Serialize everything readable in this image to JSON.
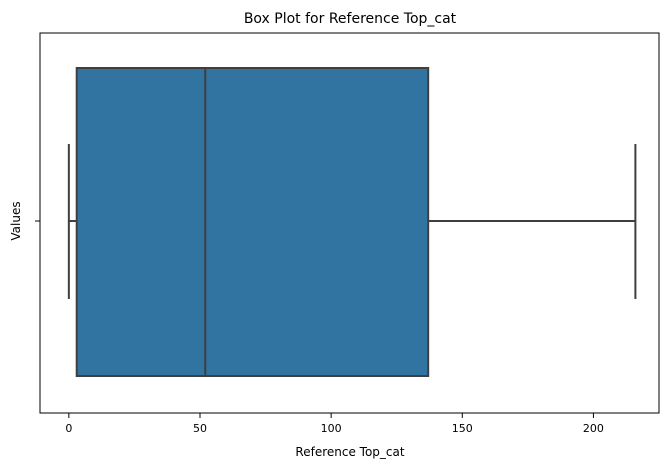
{
  "chart_data": {
    "type": "box",
    "title": "Box Plot for Reference Top_cat",
    "xlabel": "Reference Top_cat",
    "ylabel": "Values",
    "xlim": [
      -11,
      225
    ],
    "x_ticks": [
      0,
      50,
      100,
      150,
      200
    ],
    "x_tick_labels": [
      "0",
      "50",
      "100",
      "150",
      "200"
    ],
    "y_tick_labels": [
      ""
    ],
    "orientation": "horizontal",
    "grid": false,
    "box": {
      "whisker_low": 0,
      "q1": 3,
      "median": 52,
      "q3": 137,
      "whisker_high": 216
    },
    "colors": {
      "box_fill": "#3274a1",
      "line": "#3f3f3f",
      "axes": "#000000"
    }
  }
}
